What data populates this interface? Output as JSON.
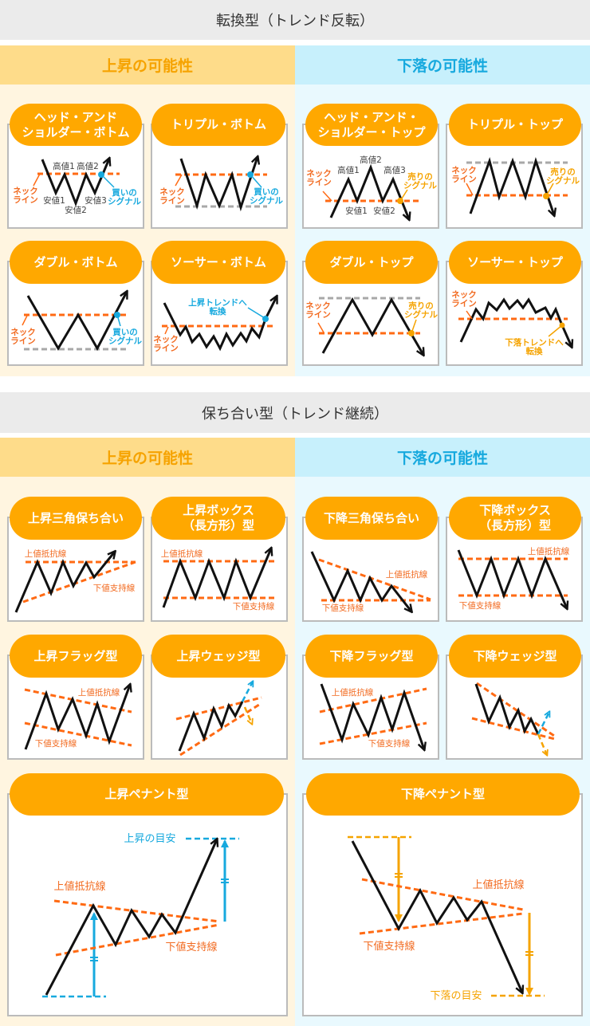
{
  "colors": {
    "pill": "#ffa800",
    "neckline": "#ff6a13",
    "up": "#17a9de",
    "down": "#f5a300",
    "line": "#111111"
  },
  "section1": {
    "title": "転換型（トレンド反転）",
    "up_label": "上昇の可能性",
    "down_label": "下落の可能性",
    "cards": [
      {
        "title": "ヘッド・アンド\nショルダー・ボトム",
        "high1": "高値1",
        "high2": "高値2",
        "low1": "安値1",
        "low2": "安値2",
        "low3": "安値3",
        "neck1": "ネック",
        "neck2": "ライン",
        "sig1": "買いの",
        "sig2": "シグナル"
      },
      {
        "title": "トリプル・ボトム",
        "neck1": "ネック",
        "neck2": "ライン",
        "sig1": "買いの",
        "sig2": "シグナル"
      },
      {
        "title": "ヘッド・アンド・\nショルダー・トップ",
        "high1": "高値1",
        "high2": "高値2",
        "high3": "高値3",
        "low1": "安値1",
        "low2": "安値2",
        "neck1": "ネック",
        "neck2": "ライン",
        "sig1": "売りの",
        "sig2": "シグナル"
      },
      {
        "title": "トリプル・トップ",
        "neck1": "ネック",
        "neck2": "ライン",
        "sig1": "売りの",
        "sig2": "シグナル"
      },
      {
        "title": "ダブル・ボトム",
        "neck1": "ネック",
        "neck2": "ライン",
        "sig1": "買いの",
        "sig2": "シグナル"
      },
      {
        "title": "ソーサー・ボトム",
        "neck1": "ネック",
        "neck2": "ライン",
        "trend1": "上昇トレンドへ",
        "trend2": "転換"
      },
      {
        "title": "ダブル・トップ",
        "neck1": "ネック",
        "neck2": "ライン",
        "sig1": "売りの",
        "sig2": "シグナル"
      },
      {
        "title": "ソーサー・トップ",
        "neck1": "ネック",
        "neck2": "ライン",
        "trend1": "下落トレンドへ",
        "trend2": "転換"
      }
    ]
  },
  "section2": {
    "title": "保ち合い型（トレンド継続）",
    "up_label": "上昇の可能性",
    "down_label": "下落の可能性",
    "resistance": "上値抵抗線",
    "support": "下値支持線",
    "cards": [
      {
        "title": "上昇三角保ち合い"
      },
      {
        "title": "上昇ボックス\n（長方形）型"
      },
      {
        "title": "下降三角保ち合い"
      },
      {
        "title": "下降ボックス\n（長方形）型"
      },
      {
        "title": "上昇フラッグ型"
      },
      {
        "title": "上昇ウェッジ型"
      },
      {
        "title": "下降フラッグ型"
      },
      {
        "title": "下降ウェッジ型"
      },
      {
        "title": "上昇ペナント型",
        "target": "上昇の目安"
      },
      {
        "title": "下降ペナント型",
        "target": "下落の目安"
      }
    ]
  }
}
